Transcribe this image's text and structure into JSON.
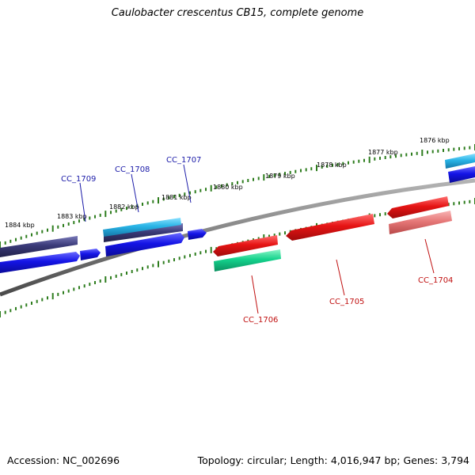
{
  "title": "Caulobacter crescentus CB15, complete genome",
  "footer": {
    "accession": "Accession: NC_002696",
    "summary": "Topology: circular; Length: 4,016,947 bp; Genes: 3,794"
  },
  "ruler": {
    "ticks": [
      "1884 kbp",
      "1883 kbp",
      "1882 kbp",
      "1881 kbp",
      "1880 kbp",
      "1879 kbp",
      "1878 kbp",
      "1877 kbp",
      "1876 kbp"
    ]
  },
  "genes": [
    {
      "label": "CC_1709",
      "strand": "forward"
    },
    {
      "label": "CC_1708",
      "strand": "forward"
    },
    {
      "label": "CC_1707",
      "strand": "forward"
    },
    {
      "label": "CC_1706",
      "strand": "reverse"
    },
    {
      "label": "CC_1705",
      "strand": "reverse"
    },
    {
      "label": "CC_1704",
      "strand": "reverse"
    }
  ],
  "colors": {
    "backbone": "#7f7f7f",
    "ruler": "#2e7d1e",
    "forward_gene": "#1414e6",
    "forward_label": "#1a1aa8",
    "dark_feature": "#3a3a78",
    "cyan_feature": "#28b4e6",
    "reverse_gene": "#e61414",
    "reverse_label": "#c01010",
    "teal_feature": "#14d28c",
    "pink_feature": "#e67878"
  }
}
